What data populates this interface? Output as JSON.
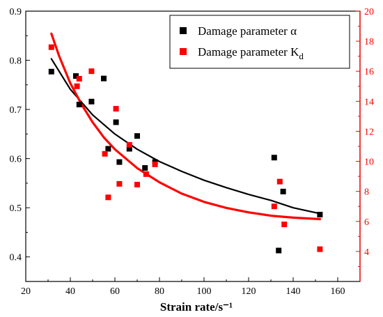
{
  "chart_data": {
    "type": "scatter",
    "xlabel": "Strain rate/s⁻¹",
    "x_ticks": [
      20,
      40,
      60,
      80,
      100,
      120,
      140,
      160
    ],
    "xlim": [
      20,
      170
    ],
    "y_left": {
      "ylim": [
        0.35,
        0.9
      ],
      "ticks": [
        "0.4",
        "0.5",
        "0.6",
        "0.7",
        "0.8",
        "0.9"
      ],
      "tick_values": [
        0.4,
        0.5,
        0.6,
        0.7,
        0.8,
        0.9
      ]
    },
    "y_right": {
      "ylim": [
        2,
        20
      ],
      "ticks": [
        "4",
        "6",
        "8",
        "10",
        "12",
        "14",
        "16",
        "18",
        "20"
      ],
      "tick_values": [
        4,
        6,
        8,
        10,
        12,
        14,
        16,
        18,
        20
      ]
    },
    "legend_position": "top-right",
    "series": [
      {
        "name": "Damage parameter α",
        "color": "#000000",
        "axis": "left",
        "marker": "square",
        "points": [
          [
            31.5,
            0.777
          ],
          [
            42.5,
            0.768
          ],
          [
            44,
            0.71
          ],
          [
            49.5,
            0.716
          ],
          [
            55,
            0.763
          ],
          [
            57,
            0.62
          ],
          [
            60.5,
            0.674
          ],
          [
            62,
            0.593
          ],
          [
            66.5,
            0.62
          ],
          [
            70,
            0.646
          ],
          [
            73.5,
            0.581
          ],
          [
            78,
            0.593
          ],
          [
            131.5,
            0.602
          ],
          [
            133.5,
            0.413
          ],
          [
            135.5,
            0.533
          ],
          [
            152,
            0.486
          ]
        ],
        "fit_curve": [
          [
            31.5,
            0.803
          ],
          [
            40,
            0.741
          ],
          [
            50,
            0.689
          ],
          [
            60,
            0.65
          ],
          [
            70,
            0.619
          ],
          [
            80,
            0.594
          ],
          [
            90,
            0.574
          ],
          [
            100,
            0.556
          ],
          [
            110,
            0.541
          ],
          [
            120,
            0.527
          ],
          [
            130,
            0.515
          ],
          [
            140,
            0.5
          ],
          [
            152,
            0.488
          ]
        ]
      },
      {
        "name": "Damage parameter Kd",
        "legend_base": "Damage parameter K",
        "legend_sub": "d",
        "color": "#ff0000",
        "axis": "right",
        "marker": "square",
        "points": [
          [
            31.5,
            17.6
          ],
          [
            43,
            15.0
          ],
          [
            44,
            15.5
          ],
          [
            49.5,
            16.0
          ],
          [
            55.5,
            10.5
          ],
          [
            57,
            7.6
          ],
          [
            60.5,
            13.5
          ],
          [
            62,
            8.5
          ],
          [
            66.5,
            11.1
          ],
          [
            70,
            8.45
          ],
          [
            74,
            9.15
          ],
          [
            78,
            9.8
          ],
          [
            131.5,
            7.0
          ],
          [
            134,
            8.65
          ],
          [
            136,
            5.8
          ],
          [
            152,
            4.15
          ]
        ],
        "fit_curve": [
          [
            31.5,
            18.5
          ],
          [
            35,
            17.0
          ],
          [
            40,
            15.2
          ],
          [
            45,
            13.8
          ],
          [
            50,
            12.6
          ],
          [
            55,
            11.6
          ],
          [
            60,
            10.8
          ],
          [
            70,
            9.55
          ],
          [
            80,
            8.6
          ],
          [
            90,
            7.85
          ],
          [
            100,
            7.3
          ],
          [
            110,
            6.9
          ],
          [
            120,
            6.6
          ],
          [
            130,
            6.38
          ],
          [
            140,
            6.25
          ],
          [
            152,
            6.15
          ]
        ]
      }
    ]
  }
}
